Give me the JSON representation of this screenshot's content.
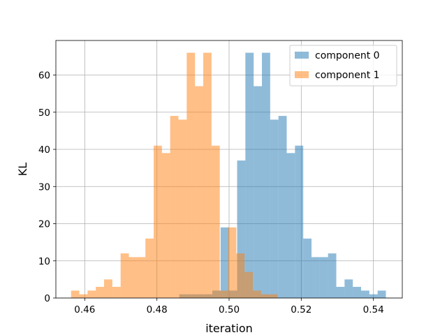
{
  "chart_data": {
    "type": "histogram",
    "title": "",
    "xlabel": "iteration",
    "ylabel": "KL",
    "xlim": [
      0.452,
      0.548
    ],
    "ylim": [
      0,
      69.3
    ],
    "xticks": [
      0.46,
      0.48,
      0.5,
      0.52,
      0.54
    ],
    "xtick_labels": [
      "0.46",
      "0.48",
      "0.50",
      "0.52",
      "0.54"
    ],
    "yticks": [
      0,
      10,
      20,
      30,
      40,
      50,
      60
    ],
    "ytick_labels": [
      "0",
      "10",
      "20",
      "30",
      "40",
      "50",
      "60"
    ],
    "grid": true,
    "legend_position": "top-right",
    "series": [
      {
        "name": "component 0",
        "color": "#1f77b4",
        "alpha": 0.5,
        "bin_start": 0.4862,
        "bin_width": 0.00229,
        "counts": [
          1,
          1,
          1,
          1,
          2,
          19,
          2,
          37,
          66,
          57,
          66,
          48,
          49,
          39,
          41,
          16,
          11,
          11,
          12,
          3,
          5,
          3,
          2,
          1,
          2
        ]
      },
      {
        "name": "component 1",
        "color": "#ff7f0e",
        "alpha": 0.5,
        "bin_start": 0.4562,
        "bin_width": 0.00229,
        "counts": [
          2,
          1,
          2,
          3,
          5,
          3,
          12,
          11,
          11,
          16,
          41,
          39,
          49,
          48,
          66,
          57,
          66,
          41,
          2,
          19,
          12,
          7,
          2,
          1,
          1
        ]
      }
    ]
  }
}
